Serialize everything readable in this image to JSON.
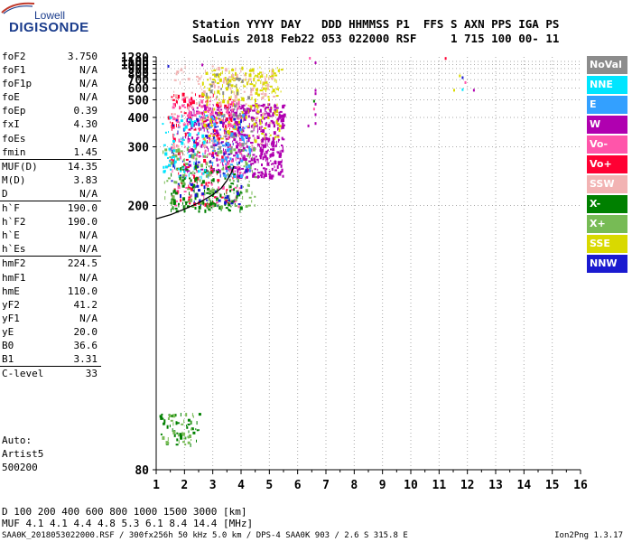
{
  "logo": {
    "top": "Lowell",
    "main": "DIGISONDE"
  },
  "header": {
    "line1": "Station YYYY DAY   DDD HHMMSS P1  FFS S AXN PPS IGA PS",
    "line2": "SaoLuis 2018 Feb22 053 022000 RSF     1 715 100 00- 11"
  },
  "params": [
    {
      "name": "foF2",
      "value": "3.750",
      "sep": false
    },
    {
      "name": "foF1",
      "value": "N/A",
      "sep": false
    },
    {
      "name": "foF1p",
      "value": "N/A",
      "sep": false
    },
    {
      "name": "foE",
      "value": "N/A",
      "sep": false
    },
    {
      "name": "foEp",
      "value": "0.39",
      "sep": false
    },
    {
      "name": "fxI",
      "value": "4.30",
      "sep": false
    },
    {
      "name": "foEs",
      "value": "N/A",
      "sep": false
    },
    {
      "name": "fmin",
      "value": "1.45",
      "sep": false
    },
    {
      "name": "MUF(D)",
      "value": "14.35",
      "sep": true
    },
    {
      "name": "M(D)",
      "value": "3.83",
      "sep": false
    },
    {
      "name": "D",
      "value": "N/A",
      "sep": false
    },
    {
      "name": "h`F",
      "value": "190.0",
      "sep": true
    },
    {
      "name": "h`F2",
      "value": "190.0",
      "sep": false
    },
    {
      "name": "h`E",
      "value": "N/A",
      "sep": false
    },
    {
      "name": "h`Es",
      "value": "N/A",
      "sep": false
    },
    {
      "name": "hmF2",
      "value": "224.5",
      "sep": true
    },
    {
      "name": "hmF1",
      "value": "N/A",
      "sep": false
    },
    {
      "name": "hmE",
      "value": "110.0",
      "sep": false
    },
    {
      "name": "yF2",
      "value": "41.2",
      "sep": false
    },
    {
      "name": "yF1",
      "value": "N/A",
      "sep": false
    },
    {
      "name": "yE",
      "value": "20.0",
      "sep": false
    },
    {
      "name": "B0",
      "value": "36.6",
      "sep": false
    },
    {
      "name": "B1",
      "value": "3.31",
      "sep": false
    },
    {
      "name": "C-level",
      "value": "33",
      "sep": true
    }
  ],
  "auto": {
    "line1": "Auto:",
    "line2": "Artist5",
    "line3": "500200"
  },
  "legend": [
    {
      "label": "NoVal",
      "color": "#8c8c8c"
    },
    {
      "label": "NNE",
      "color": "#00e5ff"
    },
    {
      "label": "E",
      "color": "#33a0ff"
    },
    {
      "label": "W",
      "color": "#b000b0"
    },
    {
      "label": "Vo-",
      "color": "#ff55aa"
    },
    {
      "label": "Vo+",
      "color": "#ff0033"
    },
    {
      "label": "SSW",
      "color": "#f2b3b3"
    },
    {
      "label": "X-",
      "color": "#008000"
    },
    {
      "label": "X+",
      "color": "#77bb55"
    },
    {
      "label": "SSE",
      "color": "#d9d900"
    },
    {
      "label": "NNW",
      "color": "#1a1ad0"
    }
  ],
  "muf_table": {
    "row1": "D     100  200  400  600  800  1000  1500  3000 [km]",
    "row2": "MUF    4.1  4.1  4.4  4.8  5.3  6.1   8.4  14.4 [MHz]"
  },
  "footer": {
    "left": "SAA0K_2018053022000.RSF / 300fx256h 50 kHz 5.0 km / DPS-4 SAA0K 903 / 2.6 S 315.8 E",
    "right": "Ion2Png 1.3.17"
  },
  "chart_data": {
    "type": "scatter",
    "title": "",
    "xlabel": "",
    "ylabel": "",
    "x_ticks": [
      "1",
      "2",
      "3",
      "4",
      "5",
      "6",
      "7",
      "8",
      "9",
      "10",
      "11",
      "12",
      "13",
      "14",
      "15",
      "16"
    ],
    "y_ticks": [
      "80",
      "200",
      "300",
      "400",
      "500",
      "600",
      "700",
      "800",
      "900",
      "1000",
      "1100",
      "1280"
    ],
    "xlim": [
      1,
      16
    ],
    "ylim": [
      80,
      1280
    ],
    "y_scale": "reciprocal",
    "grid": true,
    "legend_placement": "right",
    "trace_curve": {
      "name": "",
      "x": [
        1.0,
        1.5,
        2.0,
        2.5,
        3.0,
        3.3,
        3.5,
        3.65,
        3.75
      ],
      "y": [
        186,
        190,
        196,
        203,
        213,
        222,
        233,
        245,
        258
      ]
    },
    "echo_regions": [
      {
        "series": "W",
        "x": [
          3.5,
          5.5
        ],
        "y": [
          240,
          480
        ],
        "n": 420
      },
      {
        "series": "W",
        "x": [
          2.0,
          3.5
        ],
        "y": [
          250,
          470
        ],
        "n": 160
      },
      {
        "series": "Vo-",
        "x": [
          1.5,
          4.0
        ],
        "y": [
          200,
          520
        ],
        "n": 200
      },
      {
        "series": "Vo+",
        "x": [
          1.4,
          3.7
        ],
        "y": [
          200,
          560
        ],
        "n": 150
      },
      {
        "series": "SSE",
        "x": [
          2.6,
          5.4
        ],
        "y": [
          320,
          950
        ],
        "n": 230
      },
      {
        "series": "SSW",
        "x": [
          1.5,
          5.2
        ],
        "y": [
          300,
          980
        ],
        "n": 120
      },
      {
        "series": "X-",
        "x": [
          1.5,
          4.0
        ],
        "y": [
          195,
          260
        ],
        "n": 150
      },
      {
        "series": "X+",
        "x": [
          1.2,
          4.5
        ],
        "y": [
          200,
          300
        ],
        "n": 140
      },
      {
        "series": "NNW",
        "x": [
          1.5,
          4.2
        ],
        "y": [
          200,
          400
        ],
        "n": 90
      },
      {
        "series": "NNE",
        "x": [
          1.2,
          2.8
        ],
        "y": [
          240,
          420
        ],
        "n": 70
      },
      {
        "series": "E",
        "x": [
          2.8,
          4.3
        ],
        "y": [
          240,
          420
        ],
        "n": 70
      },
      {
        "series": "NoVal",
        "x": [
          2.5,
          4.5
        ],
        "y": [
          300,
          800
        ],
        "n": 50
      },
      {
        "series": "X-",
        "x": [
          1.1,
          2.5
        ],
        "y": [
          85,
          92
        ],
        "n": 45
      },
      {
        "series": "X+",
        "x": [
          1.1,
          2.5
        ],
        "y": [
          85,
          92
        ],
        "n": 30
      }
    ],
    "sparse_points": [
      {
        "series": "W",
        "x": 6.6,
        "y": 1100
      },
      {
        "series": "Vo-",
        "x": 6.4,
        "y": 1280
      },
      {
        "series": "W",
        "x": 6.6,
        "y": 590
      },
      {
        "series": "W",
        "x": 6.6,
        "y": 560
      },
      {
        "series": "X-",
        "x": 6.55,
        "y": 500
      },
      {
        "series": "W",
        "x": 6.6,
        "y": 480
      },
      {
        "series": "Vo-",
        "x": 6.55,
        "y": 450
      },
      {
        "series": "W",
        "x": 6.6,
        "y": 420
      },
      {
        "series": "W",
        "x": 6.35,
        "y": 370
      },
      {
        "series": "W",
        "x": 6.6,
        "y": 380
      },
      {
        "series": "Vo+",
        "x": 11.2,
        "y": 1270
      },
      {
        "series": "NNW",
        "x": 11.8,
        "y": 750
      },
      {
        "series": "SSE",
        "x": 11.7,
        "y": 780
      },
      {
        "series": "Vo-",
        "x": 11.9,
        "y": 680
      },
      {
        "series": "NNE",
        "x": 11.8,
        "y": 598
      },
      {
        "series": "SSE",
        "x": 11.5,
        "y": 592
      },
      {
        "series": "W",
        "x": 12.2,
        "y": 592
      },
      {
        "series": "NNW",
        "x": 1.4,
        "y": 990
      },
      {
        "series": "W",
        "x": 2.6,
        "y": 1030
      },
      {
        "series": "SSE",
        "x": 5.3,
        "y": 880
      }
    ]
  }
}
